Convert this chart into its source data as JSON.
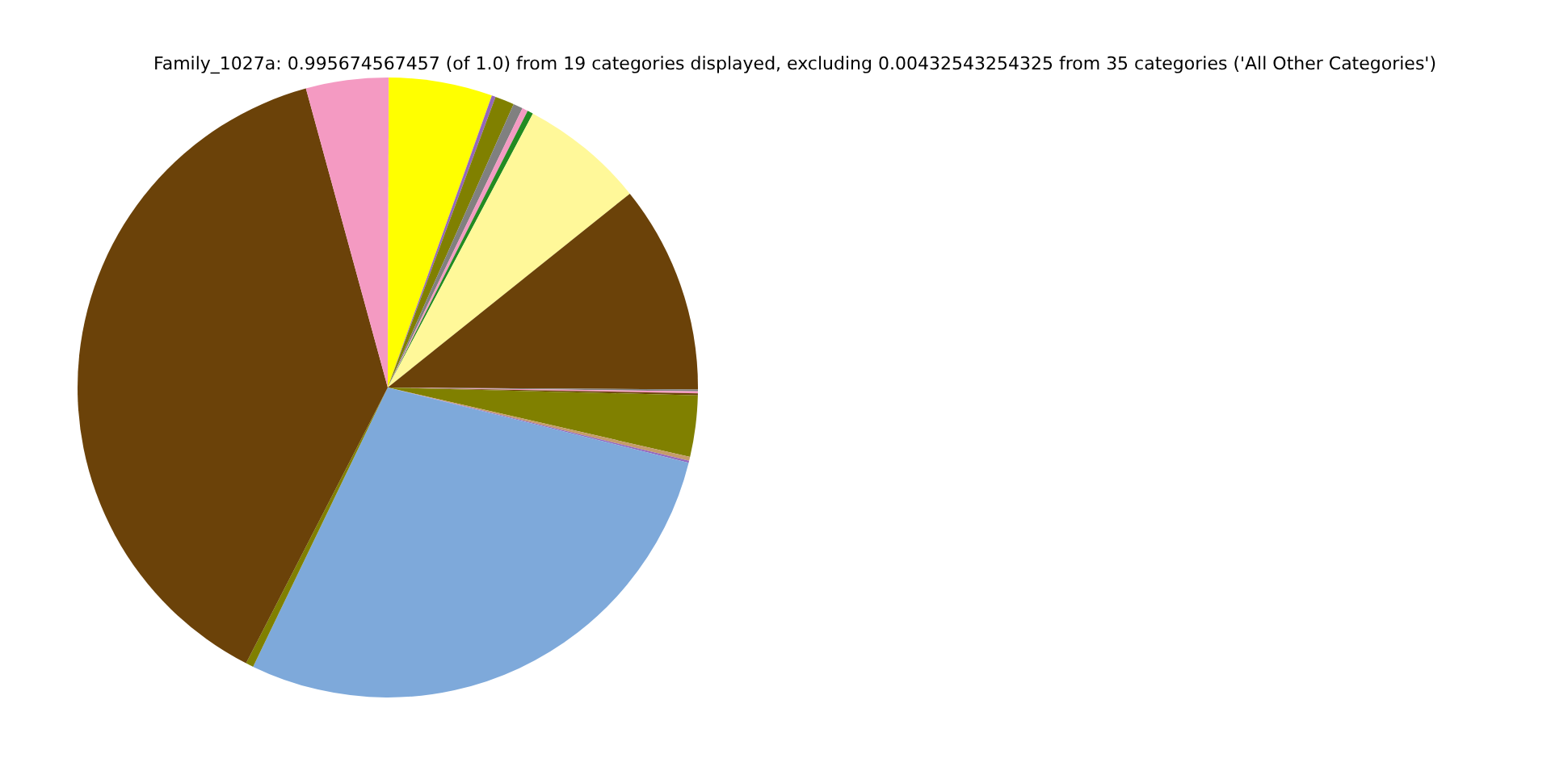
{
  "chart_data": {
    "type": "pie",
    "title": "Family_1027a: 0.995674567457 (of 1.0) from 19 categories displayed, excluding 0.00432543254325 from 35 categories ('All Other Categories')",
    "categories": [
      null,
      null,
      null,
      null,
      null,
      null,
      null,
      null,
      null,
      null,
      null,
      null,
      null,
      null,
      null,
      null,
      null,
      null,
      null
    ],
    "values": [
      0.1,
      0.1,
      0.1,
      0.1,
      3.2,
      0.2,
      0.1,
      28.25,
      0.4,
      38.2,
      4.3,
      5.4,
      0.2,
      1,
      0.5,
      0.3,
      0.3,
      6.5,
      10.75
    ],
    "colors": [
      "#6b4209",
      "#808080",
      "#f49ac2",
      "#6b4209",
      "#808000",
      "#c49c6b",
      "#9467bd",
      "#7ea9da",
      "#808000",
      "#6b4209",
      "#f49ac2",
      "#ffff00",
      "#9467bd",
      "#808000",
      "#808080",
      "#f49ac2",
      "#228b22",
      "#fff899",
      "#6b4209"
    ],
    "legend": false
  }
}
